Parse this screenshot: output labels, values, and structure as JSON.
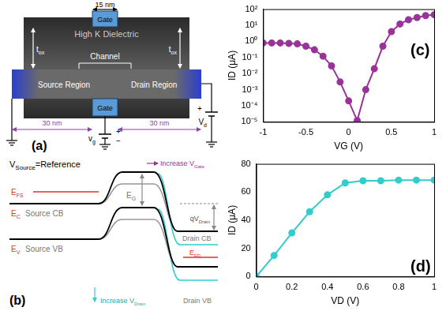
{
  "panel_a": {
    "label": "(a)",
    "gate_length": "15 nm",
    "gate_top": "Gate",
    "dielectric": "High K Dielectric",
    "channel": "Channel",
    "tox_labels": [
      [
        "t",
        {
          "sub": "ox"
        }
      ],
      [
        "t",
        {
          "sub": "ox"
        }
      ]
    ],
    "source": "Source Region",
    "drain": "Drain Region",
    "gate_bottom": "Gate",
    "length_labels": [
      "30 nm",
      "30 nm"
    ],
    "vg_plus": "+",
    "vg_minus": "−",
    "vg": [
      "v",
      {
        "sub": "g"
      }
    ],
    "vd_plus": "+",
    "vd": [
      "V",
      {
        "sub": "d"
      }
    ]
  },
  "panel_b": {
    "label": "(b)",
    "reference": [
      "V",
      {
        "sub": "Source"
      },
      "=Reference"
    ],
    "eg": [
      "E",
      {
        "sub": "G"
      }
    ],
    "efs": [
      "E",
      {
        "sub": "FS"
      }
    ],
    "ec": [
      "E",
      {
        "sub": "C"
      }
    ],
    "source_cb": "Source CB",
    "qvdrain": [
      "qV",
      {
        "sub": "Drain"
      }
    ],
    "increase_gate": [
      "Increase V",
      {
        "sub": "Gate"
      }
    ],
    "ev": [
      "E",
      {
        "sub": "V"
      }
    ],
    "source_vb": "Source VB",
    "efd": [
      "E",
      {
        "sub": "FD"
      }
    ],
    "drain_cb": "Drain CB",
    "increase_drain": [
      "Increase V",
      {
        "sub": "Drain"
      }
    ],
    "drain_vb": "Drain VB"
  },
  "chart_data": [
    {
      "type": "line",
      "annotations": [
        "(c)"
      ],
      "x_label": "VG (V)",
      "y_label": "ID (μA)",
      "x": [
        -1,
        -0.9,
        -0.8,
        -0.7,
        -0.6,
        -0.5,
        -0.4,
        -0.3,
        -0.2,
        -0.1,
        0,
        0.1,
        0.2,
        0.3,
        0.4,
        0.5,
        0.6,
        0.7,
        0.8,
        0.9,
        1
      ],
      "values": [
        0.8,
        0.8,
        0.8,
        0.75,
        0.7,
        0.5,
        0.3,
        0.12,
        0.03,
        0.003,
        0.0002,
        1.2e-05,
        0.001,
        0.02,
        0.5,
        4,
        12,
        22,
        30,
        40,
        45
      ],
      "color": "#993399",
      "marker": "circle",
      "line_style": "solid",
      "log": "y",
      "grid": false,
      "xlim": [
        -1,
        1
      ],
      "xticks": [
        -1,
        -0.5,
        0,
        0.5,
        1
      ],
      "ylim": [
        1e-05,
        100
      ],
      "yticks": [
        {
          "value": 100,
          "label": "10²"
        },
        {
          "value": 10,
          "label": "10¹"
        },
        {
          "value": 1,
          "label": "10⁰"
        },
        {
          "value": 0.1,
          "label": "10⁻¹"
        },
        {
          "value": 0.01,
          "label": "10⁻²"
        },
        {
          "value": 0.001,
          "label": "10⁻³"
        },
        {
          "value": 0.0001,
          "label": "10⁻⁴"
        },
        {
          "value": 1e-05,
          "label": "10⁻⁵"
        }
      ]
    },
    {
      "type": "line",
      "annotations": [
        "(d)"
      ],
      "x_label": "VD (V)",
      "y_label": "ID (μA)",
      "x": [
        0,
        0.1,
        0.2,
        0.3,
        0.4,
        0.5,
        0.6,
        0.7,
        0.8,
        0.9,
        1
      ],
      "values": [
        0,
        15,
        31,
        46,
        58,
        66.5,
        68,
        68,
        68.5,
        68.5,
        68.5
      ],
      "color": "#33cccc",
      "marker": "circle",
      "line_style": "solid",
      "grid": false,
      "xlim": [
        0,
        1
      ],
      "xticks": [
        0,
        0.2,
        0.4,
        0.6,
        0.8,
        1
      ],
      "ylim": [
        0,
        80
      ],
      "yticks": [
        0,
        20,
        40,
        60,
        80
      ]
    }
  ]
}
